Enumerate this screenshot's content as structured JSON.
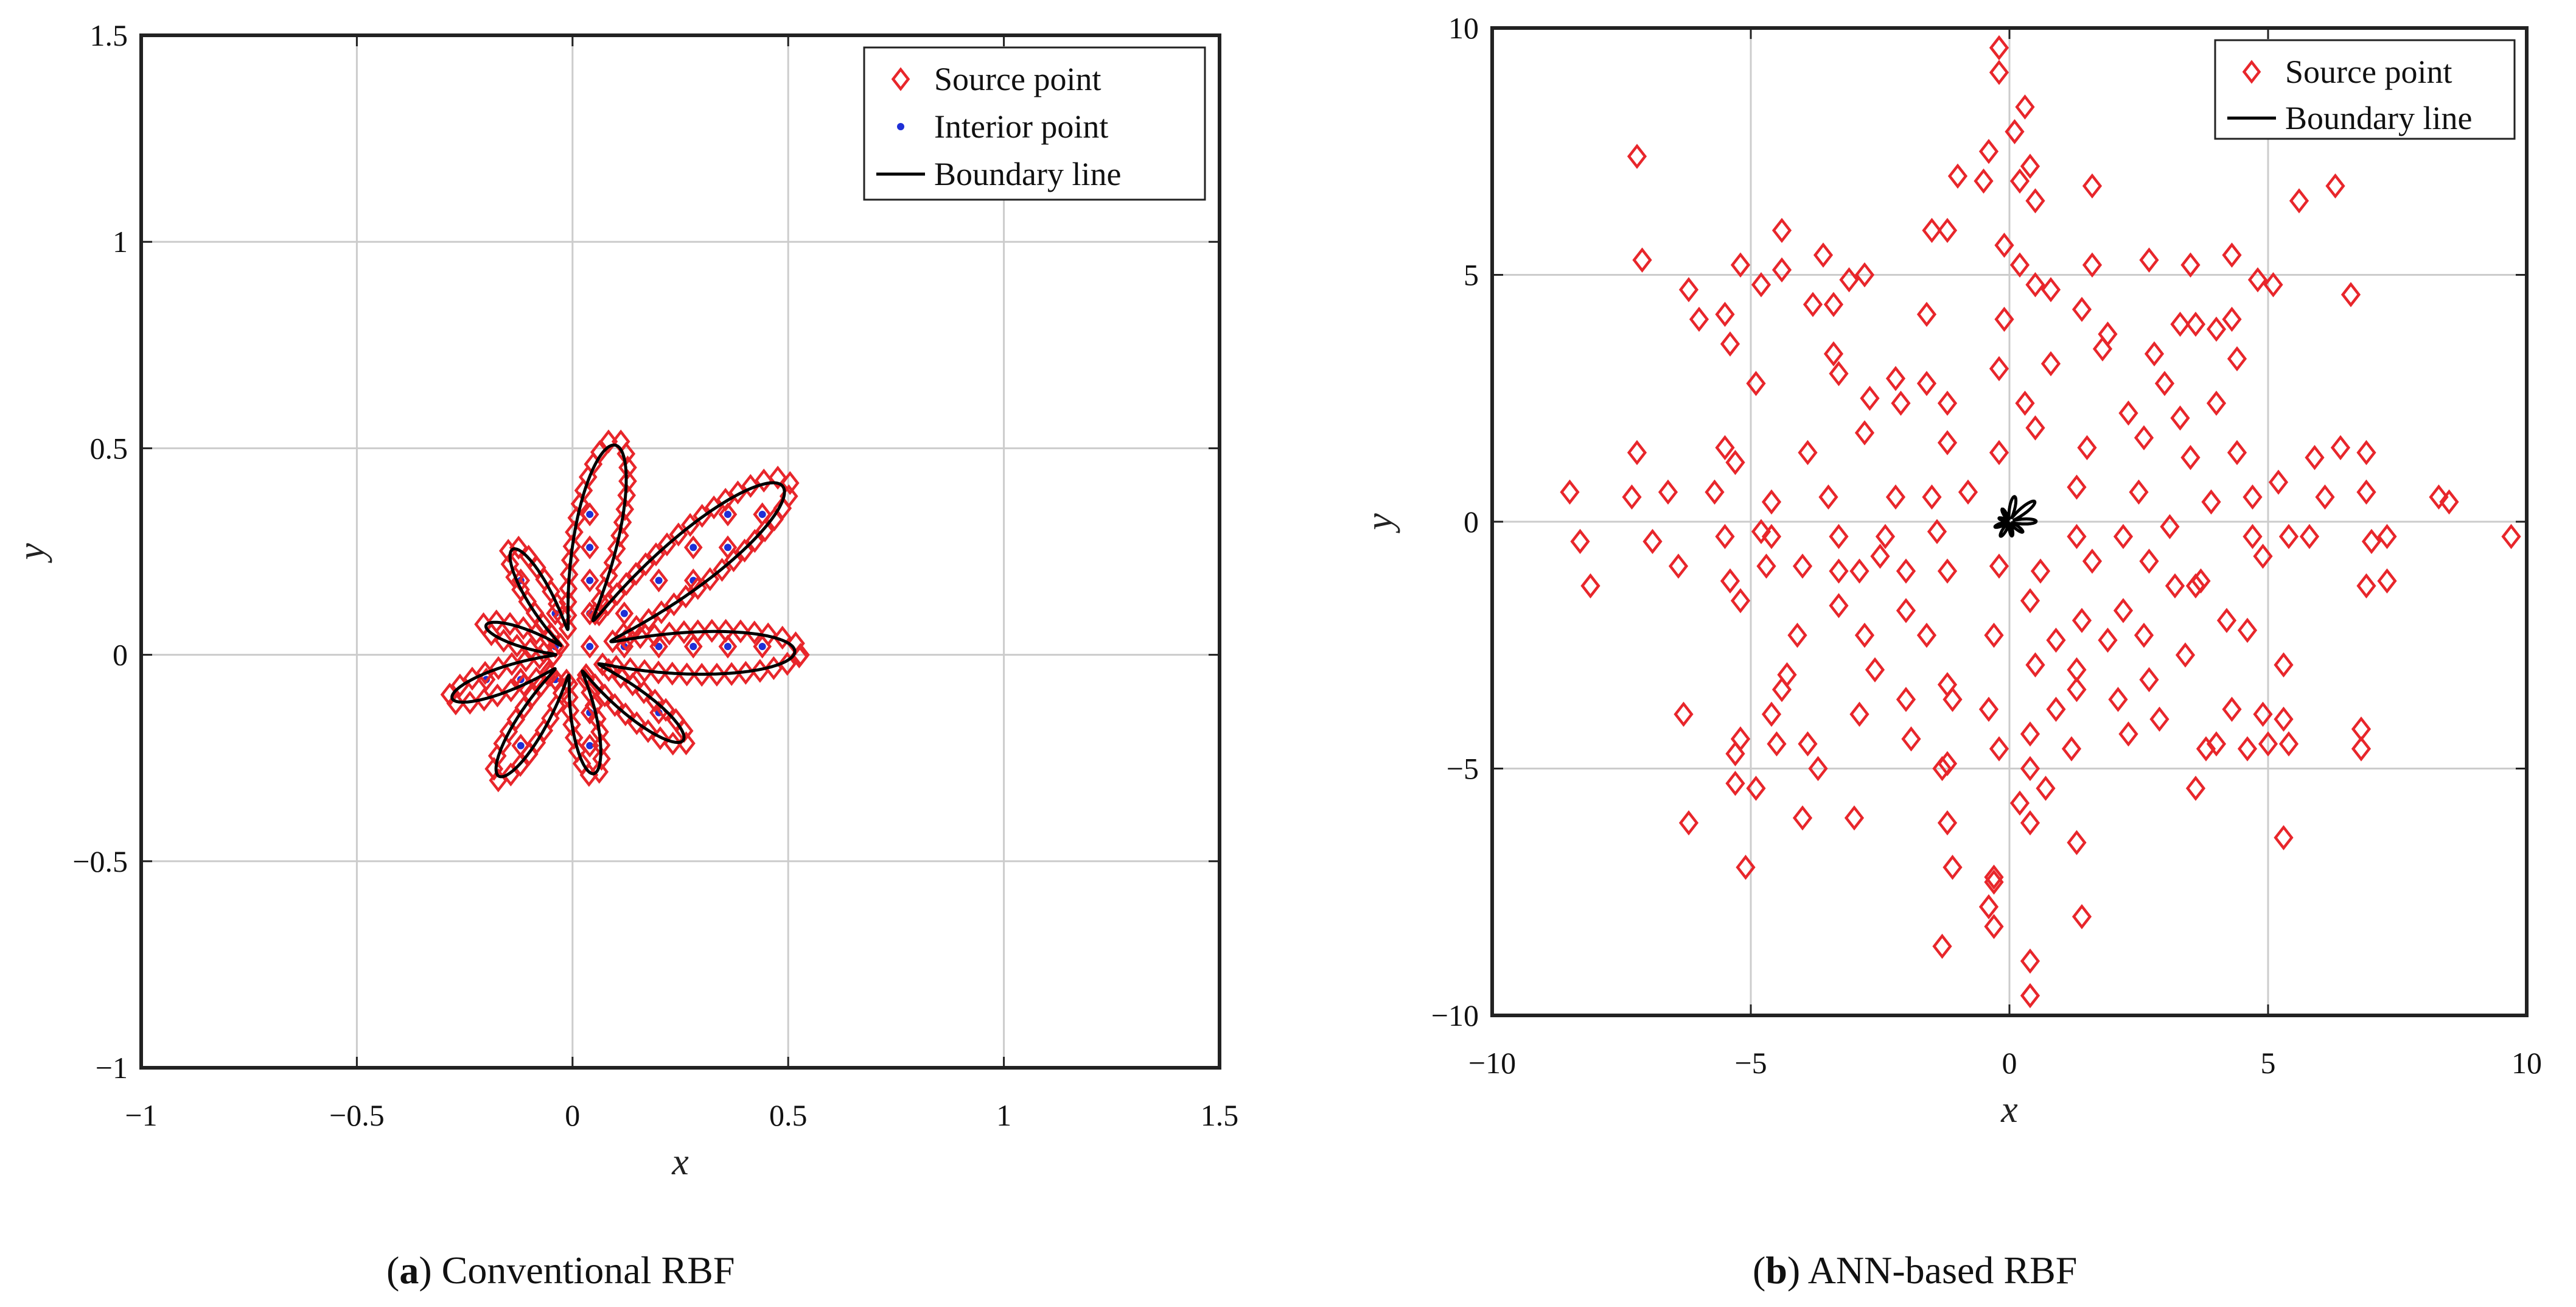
{
  "colors": {
    "source": "#e8262b",
    "interior": "#1f2fd6",
    "boundary": "#000000",
    "grid": "#cccccc"
  },
  "captions": [
    {
      "open": "(",
      "letter": "a",
      "close": ") ",
      "text": "Conventional RBF"
    },
    {
      "open": "(",
      "letter": "b",
      "close": ") ",
      "text": "ANN-based RBF"
    }
  ],
  "chart_data": [
    {
      "type": "scatter",
      "panel": "a",
      "title": "",
      "xlabel": "x",
      "ylabel": "y",
      "xlim": [
        -1,
        1.5
      ],
      "ylim": [
        -1,
        1.5
      ],
      "xticks": [
        -1,
        -0.5,
        0,
        0.5,
        1,
        1.5
      ],
      "yticks": [
        -1,
        -0.5,
        0,
        0.5,
        1,
        1.5
      ],
      "xtick_labels": [
        "−1",
        "−0.5",
        "0",
        "0.5",
        "1",
        "1.5"
      ],
      "ytick_labels": [
        "−1",
        "−0.5",
        "0",
        "0.5",
        "1",
        "1.5"
      ],
      "grid": true,
      "legend_position": "top-right",
      "legend": [
        "Source point",
        "Interior point",
        "Boundary line"
      ],
      "boundary": {
        "shape": "star",
        "lobes": 9,
        "parametrization": "r(t) = (0.22 + 0.16 cos(9t)) * (1 + 0.35 cos t + 0.2 sin t + 0.28 sin 2t)"
      },
      "source_note": "source points placed on the boundary curve (offset slightly outward)",
      "interior_note": "interior points on a uniform grid with spacing 0.08 inside the boundary"
    },
    {
      "type": "scatter",
      "panel": "b",
      "title": "",
      "xlabel": "x",
      "ylabel": "y",
      "xlim": [
        -10,
        10
      ],
      "ylim": [
        -10,
        10
      ],
      "xticks": [
        -10,
        -5,
        0,
        5,
        10
      ],
      "yticks": [
        -10,
        -5,
        0,
        5,
        10
      ],
      "xtick_labels": [
        "−10",
        "−5",
        "0",
        "5",
        "10"
      ],
      "ytick_labels": [
        "−10",
        "−5",
        "0",
        "5",
        "10"
      ],
      "grid": true,
      "legend_position": "top-right",
      "legend": [
        "Source point",
        "Boundary line"
      ],
      "source_points": [
        [
          -0.2,
          9.6
        ],
        [
          -0.2,
          9.1
        ],
        [
          0.3,
          8.4
        ],
        [
          0.1,
          7.9
        ],
        [
          -7.2,
          7.4
        ],
        [
          -0.4,
          7.5
        ],
        [
          -0.5,
          6.9
        ],
        [
          0.2,
          6.9
        ],
        [
          0.4,
          7.2
        ],
        [
          -1.0,
          7.0
        ],
        [
          1.6,
          6.8
        ],
        [
          6.3,
          6.8
        ],
        [
          5.6,
          6.5
        ],
        [
          0.5,
          6.5
        ],
        [
          -1.2,
          5.9
        ],
        [
          -1.5,
          5.9
        ],
        [
          -4.4,
          5.9
        ],
        [
          -3.6,
          5.4
        ],
        [
          -0.1,
          5.6
        ],
        [
          0.2,
          5.2
        ],
        [
          -7.1,
          5.3
        ],
        [
          -5.2,
          5.2
        ],
        [
          -3.1,
          4.9
        ],
        [
          -4.8,
          4.8
        ],
        [
          -4.4,
          5.1
        ],
        [
          -2.8,
          5.0
        ],
        [
          -6.2,
          4.7
        ],
        [
          0.5,
          4.8
        ],
        [
          1.6,
          5.2
        ],
        [
          2.7,
          5.3
        ],
        [
          3.5,
          5.2
        ],
        [
          4.3,
          5.4
        ],
        [
          4.8,
          4.9
        ],
        [
          5.1,
          4.8
        ],
        [
          -6.0,
          4.1
        ],
        [
          -5.5,
          4.2
        ],
        [
          -3.8,
          4.4
        ],
        [
          -3.4,
          4.4
        ],
        [
          -1.6,
          4.2
        ],
        [
          -0.1,
          4.1
        ],
        [
          0.8,
          4.7
        ],
        [
          1.4,
          4.3
        ],
        [
          1.9,
          3.8
        ],
        [
          3.3,
          4.0
        ],
        [
          3.6,
          4.0
        ],
        [
          4.0,
          3.9
        ],
        [
          4.3,
          4.1
        ],
        [
          6.6,
          4.6
        ],
        [
          -5.4,
          3.6
        ],
        [
          -3.4,
          3.4
        ],
        [
          -3.3,
          3.0
        ],
        [
          -2.2,
          2.9
        ],
        [
          -0.2,
          3.1
        ],
        [
          0.8,
          3.2
        ],
        [
          1.8,
          3.5
        ],
        [
          2.8,
          3.4
        ],
        [
          3.0,
          2.8
        ],
        [
          4.4,
          3.3
        ],
        [
          -4.9,
          2.8
        ],
        [
          -2.7,
          2.5
        ],
        [
          -2.1,
          2.4
        ],
        [
          -1.2,
          2.4
        ],
        [
          -1.6,
          2.8
        ],
        [
          0.3,
          2.4
        ],
        [
          2.3,
          2.2
        ],
        [
          3.3,
          2.1
        ],
        [
          4.0,
          2.4
        ],
        [
          -7.2,
          1.4
        ],
        [
          -5.5,
          1.5
        ],
        [
          -5.3,
          1.2
        ],
        [
          -3.9,
          1.4
        ],
        [
          -2.8,
          1.8
        ],
        [
          -1.2,
          1.6
        ],
        [
          -0.2,
          1.4
        ],
        [
          0.5,
          1.9
        ],
        [
          1.5,
          1.5
        ],
        [
          2.6,
          1.7
        ],
        [
          3.5,
          1.3
        ],
        [
          4.4,
          1.4
        ],
        [
          5.9,
          1.3
        ],
        [
          6.4,
          1.5
        ],
        [
          6.9,
          1.4
        ],
        [
          -8.5,
          0.6
        ],
        [
          -7.3,
          0.5
        ],
        [
          -6.6,
          0.6
        ],
        [
          -5.7,
          0.6
        ],
        [
          -4.6,
          0.4
        ],
        [
          -3.5,
          0.5
        ],
        [
          -2.2,
          0.5
        ],
        [
          -1.5,
          0.5
        ],
        [
          -0.8,
          0.6
        ],
        [
          1.3,
          0.7
        ],
        [
          2.5,
          0.6
        ],
        [
          3.9,
          0.4
        ],
        [
          4.7,
          0.5
        ],
        [
          5.2,
          0.8
        ],
        [
          6.1,
          0.5
        ],
        [
          6.9,
          0.6
        ],
        [
          8.3,
          0.5
        ],
        [
          8.5,
          0.4
        ],
        [
          -8.3,
          -0.4
        ],
        [
          -6.9,
          -0.4
        ],
        [
          -5.5,
          -0.3
        ],
        [
          -4.8,
          -0.2
        ],
        [
          -4.6,
          -0.3
        ],
        [
          -3.3,
          -0.3
        ],
        [
          -2.4,
          -0.3
        ],
        [
          -1.4,
          -0.2
        ],
        [
          1.3,
          -0.3
        ],
        [
          2.2,
          -0.3
        ],
        [
          3.1,
          -0.1
        ],
        [
          4.7,
          -0.3
        ],
        [
          5.4,
          -0.3
        ],
        [
          5.8,
          -0.3
        ],
        [
          7.0,
          -0.4
        ],
        [
          7.3,
          -0.3
        ],
        [
          9.7,
          -0.3
        ],
        [
          -8.1,
          -1.3
        ],
        [
          -6.4,
          -0.9
        ],
        [
          -5.4,
          -1.2
        ],
        [
          -4.7,
          -0.9
        ],
        [
          -4.0,
          -0.9
        ],
        [
          -3.3,
          -1.0
        ],
        [
          -2.9,
          -1.0
        ],
        [
          -2.5,
          -0.7
        ],
        [
          -2.0,
          -1.0
        ],
        [
          -1.2,
          -1.0
        ],
        [
          -0.2,
          -0.9
        ],
        [
          0.6,
          -1.0
        ],
        [
          1.6,
          -0.8
        ],
        [
          2.7,
          -0.8
        ],
        [
          3.2,
          -1.3
        ],
        [
          3.6,
          -1.3
        ],
        [
          4.9,
          -0.7
        ],
        [
          6.9,
          -1.3
        ],
        [
          7.3,
          -1.2
        ],
        [
          -5.2,
          -1.6
        ],
        [
          -3.3,
          -1.7
        ],
        [
          -2.0,
          -1.8
        ],
        [
          0.4,
          -1.6
        ],
        [
          1.4,
          -2.0
        ],
        [
          2.2,
          -1.8
        ],
        [
          3.7,
          -1.2
        ],
        [
          4.2,
          -2.0
        ],
        [
          -4.1,
          -2.3
        ],
        [
          -2.8,
          -2.3
        ],
        [
          -1.6,
          -2.3
        ],
        [
          -0.3,
          -2.3
        ],
        [
          0.9,
          -2.4
        ],
        [
          1.9,
          -2.4
        ],
        [
          2.6,
          -2.3
        ],
        [
          4.6,
          -2.2
        ],
        [
          -2.6,
          -3.0
        ],
        [
          -2.0,
          -3.6
        ],
        [
          -1.2,
          -3.3
        ],
        [
          0.5,
          -2.9
        ],
        [
          1.3,
          -3.0
        ],
        [
          2.7,
          -3.2
        ],
        [
          3.4,
          -2.7
        ],
        [
          5.3,
          -2.9
        ],
        [
          -6.3,
          -3.9
        ],
        [
          -4.4,
          -3.4
        ],
        [
          -4.3,
          -3.1
        ],
        [
          -2.9,
          -3.9
        ],
        [
          -1.1,
          -3.6
        ],
        [
          -0.4,
          -3.8
        ],
        [
          0.9,
          -3.8
        ],
        [
          1.3,
          -3.4
        ],
        [
          2.1,
          -3.6
        ],
        [
          2.9,
          -4.0
        ],
        [
          4.3,
          -3.8
        ],
        [
          4.9,
          -3.9
        ],
        [
          5.3,
          -4.0
        ],
        [
          6.8,
          -4.2
        ],
        [
          -5.2,
          -4.4
        ],
        [
          -4.6,
          -3.9
        ],
        [
          -3.9,
          -4.5
        ],
        [
          -1.9,
          -4.4
        ],
        [
          0.4,
          -4.3
        ],
        [
          2.3,
          -4.3
        ],
        [
          3.8,
          -4.6
        ],
        [
          4.0,
          -4.5
        ],
        [
          4.6,
          -4.6
        ],
        [
          5.0,
          -4.5
        ],
        [
          5.4,
          -4.5
        ],
        [
          6.8,
          -4.6
        ],
        [
          -5.3,
          -4.7
        ],
        [
          -4.5,
          -4.5
        ],
        [
          -1.2,
          -4.9
        ],
        [
          -0.2,
          -4.6
        ],
        [
          1.2,
          -4.6
        ],
        [
          -4.9,
          -5.4
        ],
        [
          -3.7,
          -5.0
        ],
        [
          -1.3,
          -5.0
        ],
        [
          0.4,
          -5.0
        ],
        [
          0.7,
          -5.4
        ],
        [
          3.6,
          -5.4
        ],
        [
          -6.2,
          -6.1
        ],
        [
          -5.3,
          -5.3
        ],
        [
          -4.0,
          -6.0
        ],
        [
          -3.0,
          -6.0
        ],
        [
          -1.2,
          -6.1
        ],
        [
          0.2,
          -5.7
        ],
        [
          0.4,
          -6.1
        ],
        [
          1.3,
          -6.5
        ],
        [
          5.3,
          -6.4
        ],
        [
          -5.1,
          -7.0
        ],
        [
          -1.1,
          -7.0
        ],
        [
          -0.3,
          -7.2
        ],
        [
          -0.3,
          -7.3
        ],
        [
          -1.3,
          -8.6
        ],
        [
          -0.4,
          -7.8
        ],
        [
          -0.3,
          -8.2
        ],
        [
          1.4,
          -8.0
        ],
        [
          0.4,
          -8.9
        ],
        [
          0.4,
          -9.6
        ]
      ],
      "boundary": {
        "shape": "star",
        "lobes": 9,
        "note": "same star-shaped boundary as panel a (scale ~1), drawn near the origin"
      }
    }
  ]
}
